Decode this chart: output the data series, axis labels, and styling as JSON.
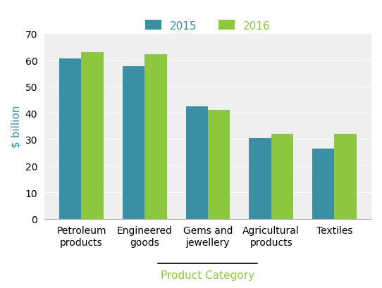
{
  "categories": [
    "Petroleum\nproducts",
    "Engineered\ngoods",
    "Gems and\njewellery",
    "Agricultural\nproducts",
    "Textiles"
  ],
  "values_2015": [
    60.5,
    57.5,
    42.5,
    30.5,
    26.5
  ],
  "values_2016": [
    63.0,
    62.0,
    41.0,
    32.0,
    32.0
  ],
  "color_2015": "#3a8fa3",
  "color_2016": "#8dc63f",
  "ylabel": "$ billion",
  "xlabel": "Product Category",
  "legend_labels": [
    "2015",
    "2016"
  ],
  "ylim": [
    0,
    70
  ],
  "yticks": [
    0,
    10,
    20,
    30,
    40,
    50,
    60,
    70
  ],
  "bar_width": 0.35,
  "axis_label_fontsize": 11,
  "tick_fontsize": 10,
  "legend_fontsize": 11,
  "xlabel_color": "#8dc63f",
  "ylabel_color": "#3a8fa3",
  "grid_color": "white",
  "bg_color": "#efefef",
  "line_color": "#aaaaaa"
}
